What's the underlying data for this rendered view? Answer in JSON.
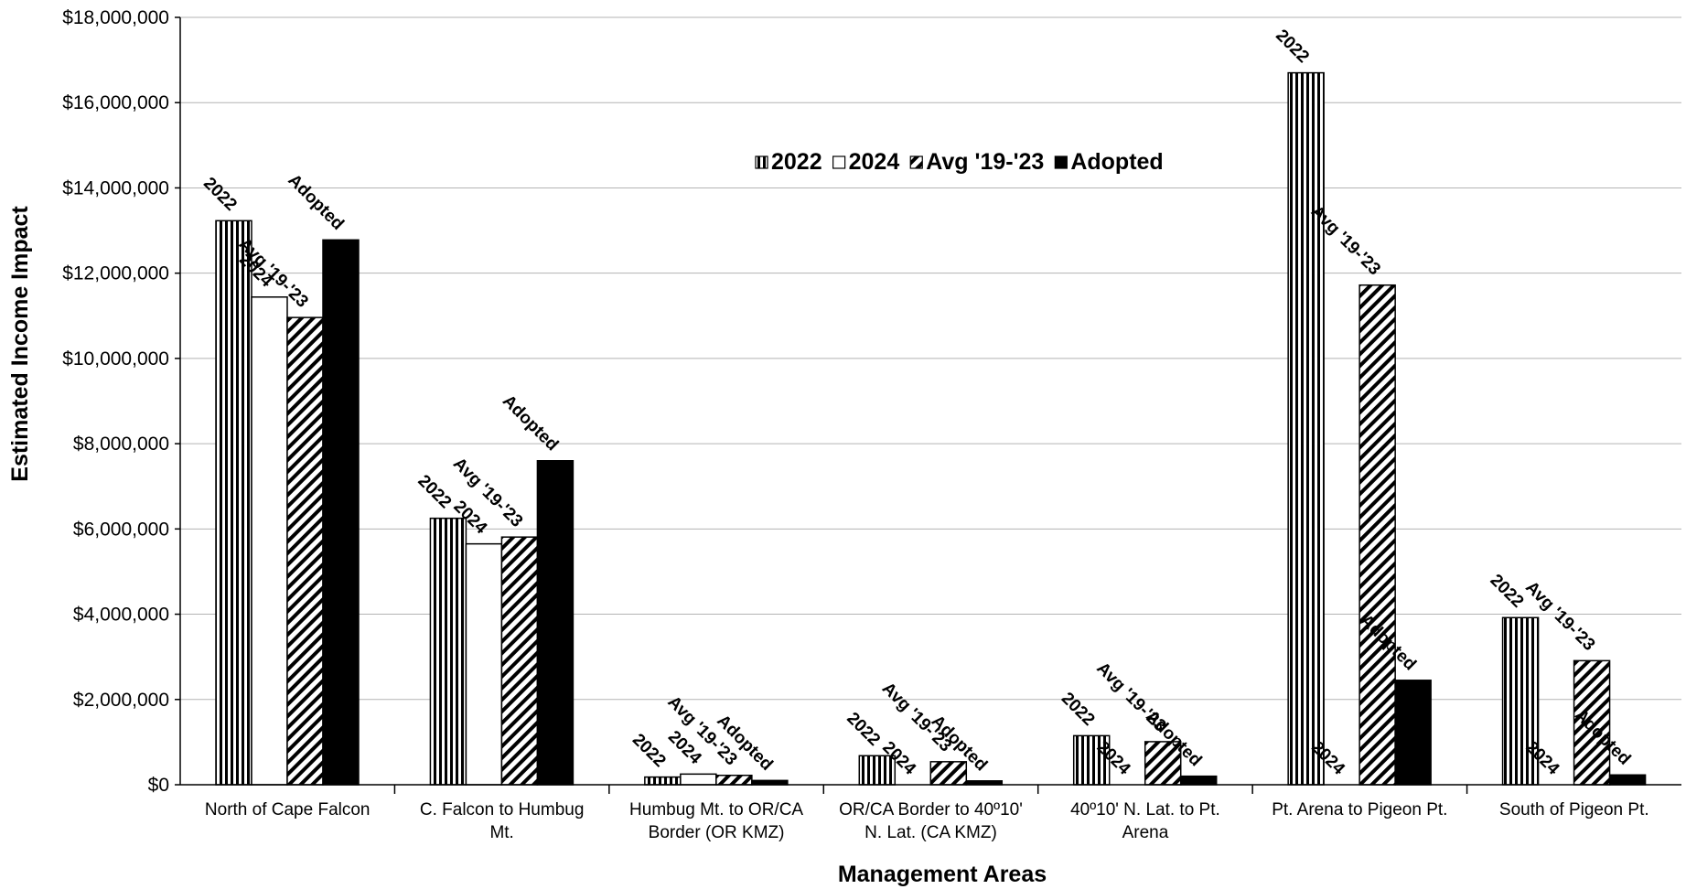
{
  "chart_data": {
    "type": "bar",
    "title": "",
    "xlabel": "Management Areas",
    "ylabel": "Estimated Income Impact",
    "ylim": [
      0,
      18000000
    ],
    "y_ticks": [
      0,
      2000000,
      4000000,
      6000000,
      8000000,
      10000000,
      12000000,
      14000000,
      16000000,
      18000000
    ],
    "y_tick_labels": [
      "$0",
      "$2,000,000",
      "$4,000,000",
      "$6,000,000",
      "$8,000,000",
      "$10,000,000",
      "$12,000,000",
      "$14,000,000",
      "$16,000,000",
      "$18,000,000"
    ],
    "grid": true,
    "legend_position": "top-center",
    "categories": [
      [
        "North of Cape Falcon"
      ],
      [
        "C. Falcon to Humbug",
        "Mt."
      ],
      [
        "Humbug Mt. to OR/CA",
        "Border (OR KMZ)"
      ],
      [
        "OR/CA Border to 40º10'",
        "N. Lat. (CA KMZ)"
      ],
      [
        "40º10' N. Lat. to Pt.",
        "Arena"
      ],
      [
        "Pt. Arena to Pigeon Pt."
      ],
      [
        "South of Pigeon Pt."
      ]
    ],
    "series": [
      {
        "name": "2022",
        "pattern": "vertical-stripes",
        "values": [
          13230000,
          6250000,
          180000,
          680000,
          1150000,
          16700000,
          3920000
        ]
      },
      {
        "name": "2024",
        "pattern": "white",
        "values": [
          11440000,
          5650000,
          250000,
          0,
          0,
          0,
          0
        ]
      },
      {
        "name": "Avg '19-'23",
        "pattern": "diagonal-hatch",
        "values": [
          10960000,
          5810000,
          220000,
          540000,
          1010000,
          11720000,
          2910000
        ]
      },
      {
        "name": "Adopted",
        "pattern": "black",
        "values": [
          12780000,
          7600000,
          100000,
          90000,
          200000,
          2450000,
          230000
        ]
      }
    ],
    "legend": [
      "2022",
      "2024",
      "Avg '19-'23",
      "Adopted"
    ],
    "colors": {
      "fill_black": "#000000",
      "fill_white": "#ffffff",
      "grid": "#b3b3b3",
      "outline": "#000000"
    }
  }
}
